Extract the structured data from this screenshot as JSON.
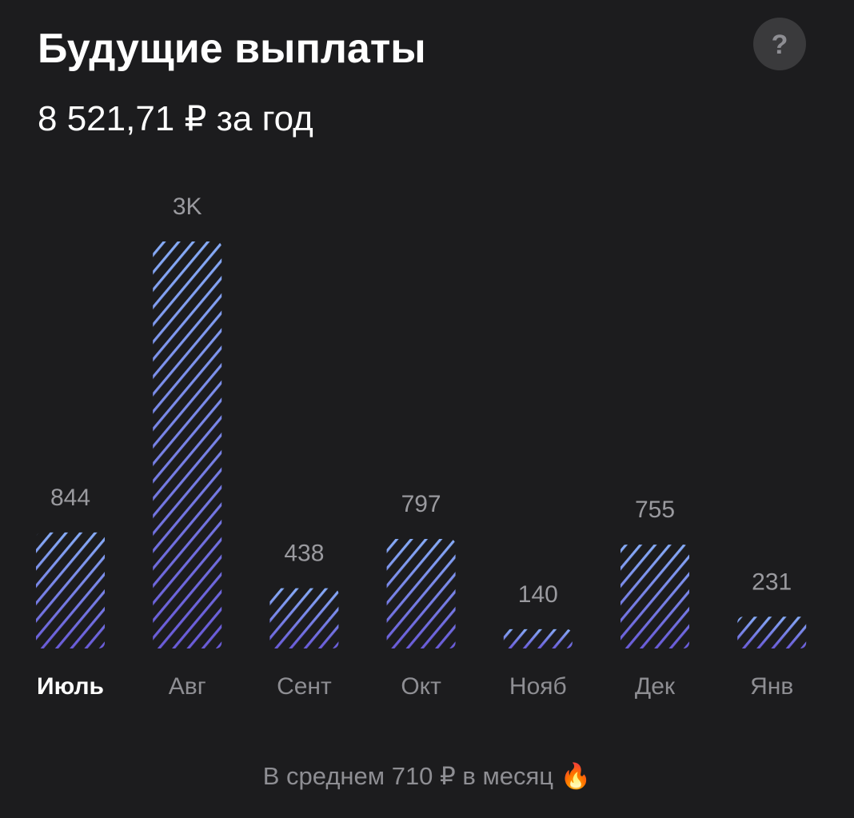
{
  "header": {
    "title": "Будущие выплаты",
    "subtitle": "8 521,71 ₽ за год",
    "help_icon": "?"
  },
  "chart_data": {
    "type": "bar",
    "categories": [
      "Июль",
      "Авг",
      "Сент",
      "Окт",
      "Нояб",
      "Дек",
      "Янв"
    ],
    "values": [
      844,
      2960,
      438,
      797,
      140,
      755,
      231
    ],
    "value_labels": [
      "844",
      "3K",
      "438",
      "797",
      "140",
      "755",
      "231"
    ],
    "selected_index": 0,
    "gradient": [
      "#86abf6",
      "#6a5bd8"
    ],
    "hatched": true
  },
  "footer": {
    "note": "В среднем 710 ₽ в месяц 🔥"
  }
}
